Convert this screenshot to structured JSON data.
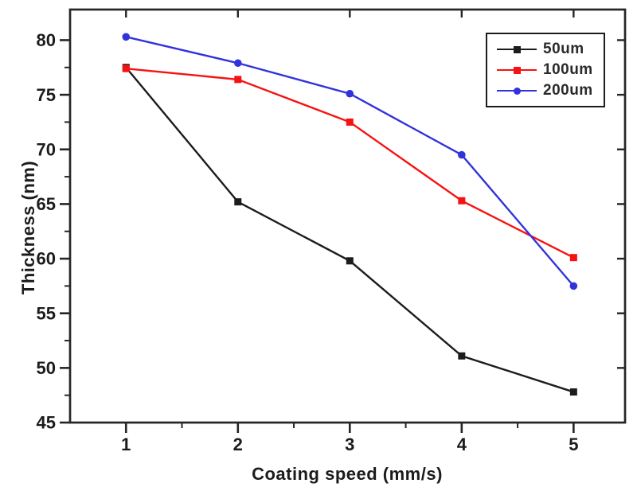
{
  "chart_data": {
    "type": "line",
    "title": "",
    "xlabel": "Coating speed (mm/s)",
    "ylabel": "Thickness (nm)",
    "x": [
      1,
      2,
      3,
      4,
      5
    ],
    "series": [
      {
        "name": "50um",
        "color": "#1c1c1c",
        "marker": "square",
        "values": [
          77.5,
          65.2,
          59.8,
          51.1,
          47.8
        ]
      },
      {
        "name": "100um",
        "color": "#f71212",
        "marker": "square",
        "values": [
          77.4,
          76.4,
          72.5,
          65.3,
          60.1
        ]
      },
      {
        "name": "200um",
        "color": "#3232dc",
        "marker": "circle",
        "values": [
          80.3,
          77.9,
          75.1,
          69.5,
          57.5
        ]
      }
    ],
    "xlim": [
      0.5,
      5.46
    ],
    "ylim": [
      45,
      82.8
    ],
    "x_ticks": [
      1,
      2,
      3,
      4,
      5
    ],
    "x_minor_ticks": [
      1.5,
      2.5,
      3.5,
      4.5
    ],
    "y_ticks": [
      45,
      50,
      55,
      60,
      65,
      70,
      75,
      80
    ],
    "y_minor_ticks": [
      47.5,
      52.5,
      57.5,
      62.5,
      67.5,
      72.5,
      77.5
    ],
    "grid": false,
    "legend_position": "top-right",
    "axis_color": "#262626",
    "tick_label_color": "#1c1c1c"
  }
}
